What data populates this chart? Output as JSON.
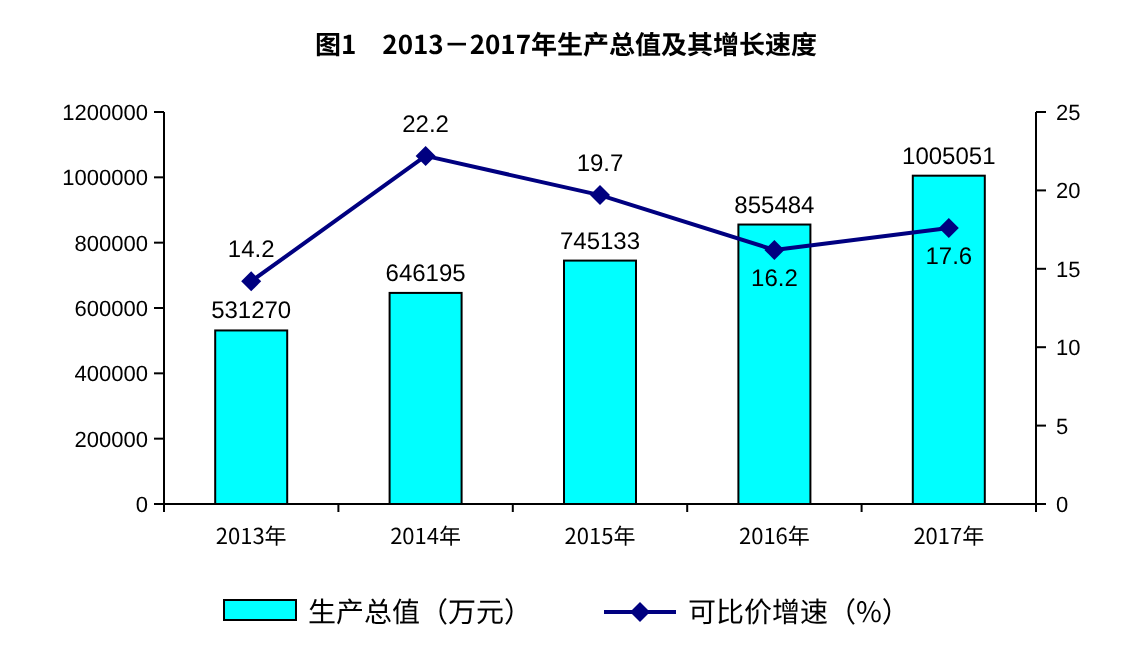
{
  "chart_data": {
    "type": "bar",
    "title": "图1　2013－2017年生产总值及其增长速度",
    "categories": [
      "2013年",
      "2014年",
      "2015年",
      "2016年",
      "2017年"
    ],
    "series": [
      {
        "name": "生产总值（万元）",
        "color": "#00ffff",
        "values": [
          531270,
          646195,
          745133,
          855484,
          1005051
        ]
      },
      {
        "name": "可比价增速（%）",
        "type": "line",
        "axis": "y2",
        "color": "#000080",
        "marker": "diamond",
        "values": [
          14.2,
          22.2,
          19.7,
          16.2,
          17.6
        ]
      }
    ],
    "ylim": [
      0,
      1200000
    ],
    "yticks": [
      0,
      200000,
      400000,
      600000,
      800000,
      1000000,
      1200000
    ],
    "y2lim": [
      0,
      25
    ],
    "y2ticks": [
      0,
      5,
      10,
      15,
      20,
      25
    ],
    "data_labels": true,
    "legend": "bottom",
    "grid": false
  }
}
